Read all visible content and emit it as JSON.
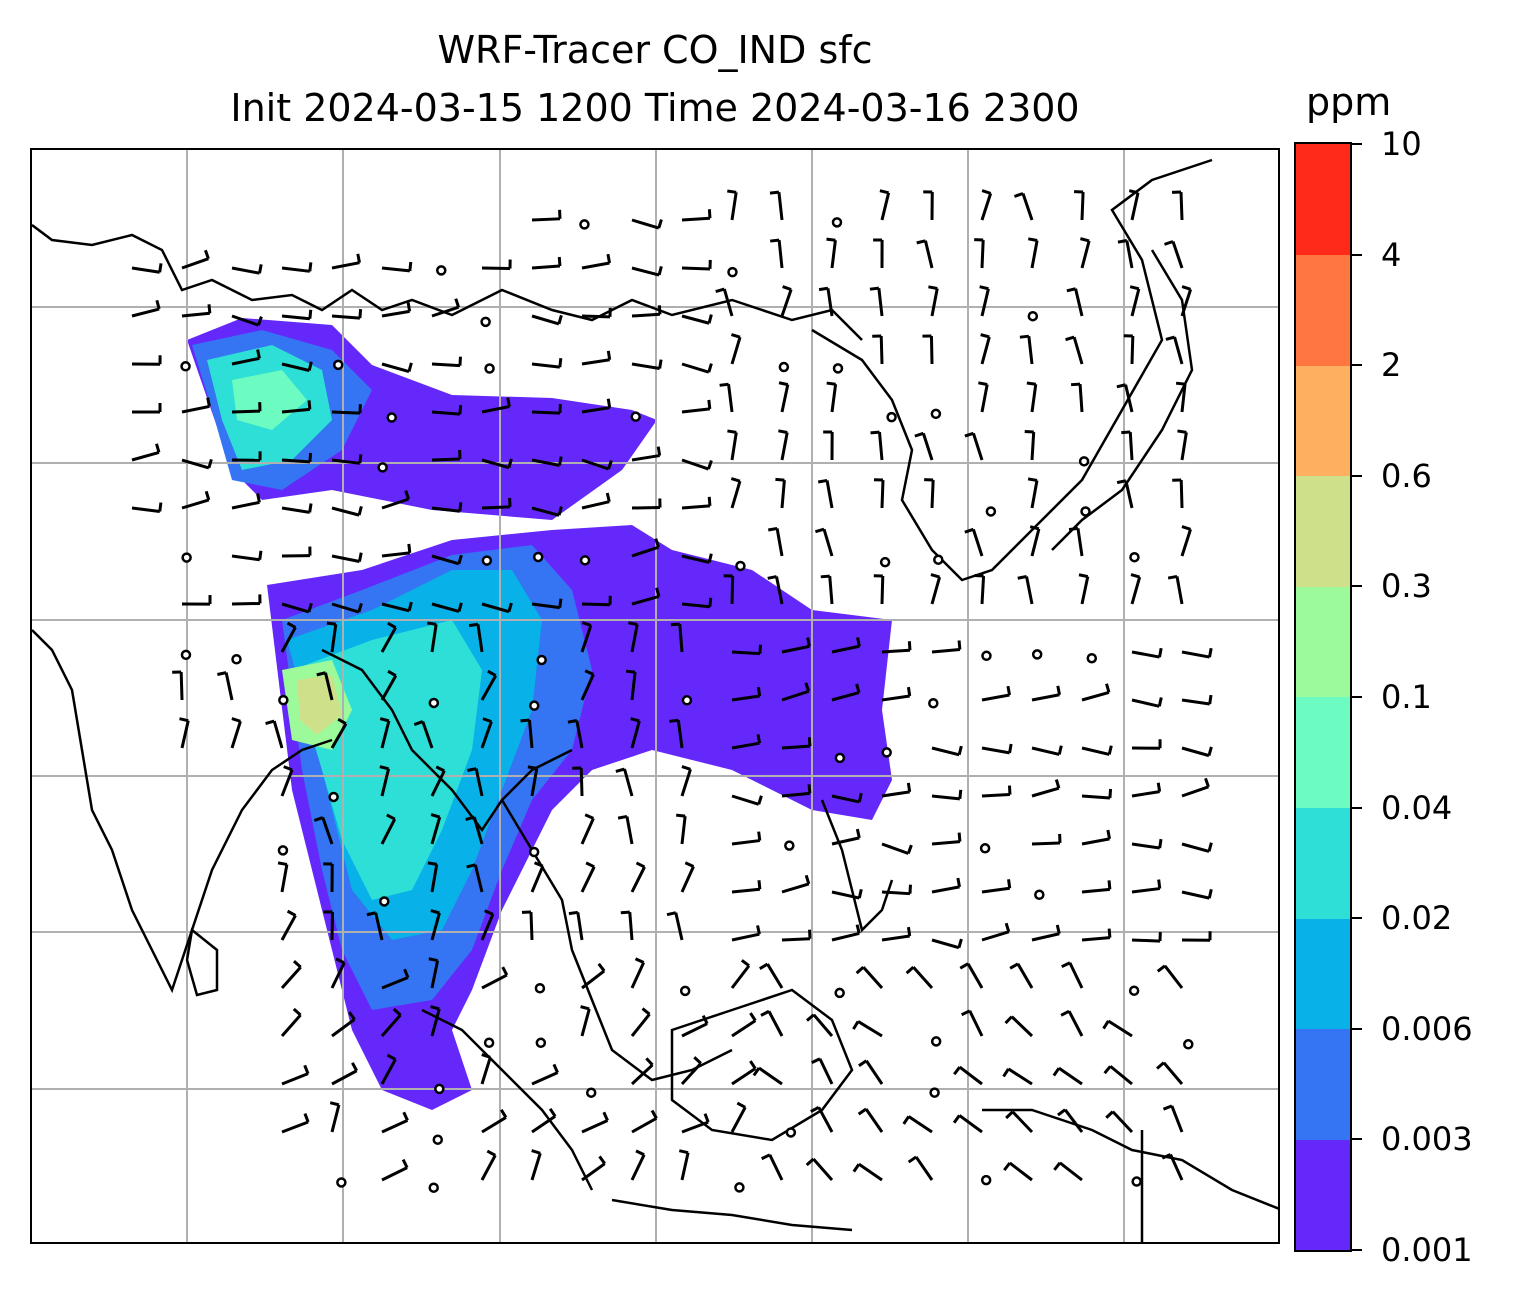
{
  "title": {
    "line1": "WRF-Tracer CO_IND sfc",
    "line2": "Init 2024-03-15 1200 Time 2024-03-16 2300"
  },
  "colorbar": {
    "label": "ppm",
    "ticks": [
      "0.001",
      "0.003",
      "0.006",
      "0.02",
      "0.04",
      "0.1",
      "0.3",
      "0.6",
      "2",
      "4",
      "10"
    ],
    "colors": [
      "#6428fa",
      "#3574f2",
      "#08b2e8",
      "#2ddfd6",
      "#6cfbc0",
      "#9cfa9b",
      "#cfe08a",
      "#feb060",
      "#ff7640",
      "#ff2a1a"
    ]
  },
  "map": {
    "gridlines": "on",
    "features": [
      "coastlines",
      "borders",
      "wind-barbs",
      "tracer-shading"
    ]
  }
}
